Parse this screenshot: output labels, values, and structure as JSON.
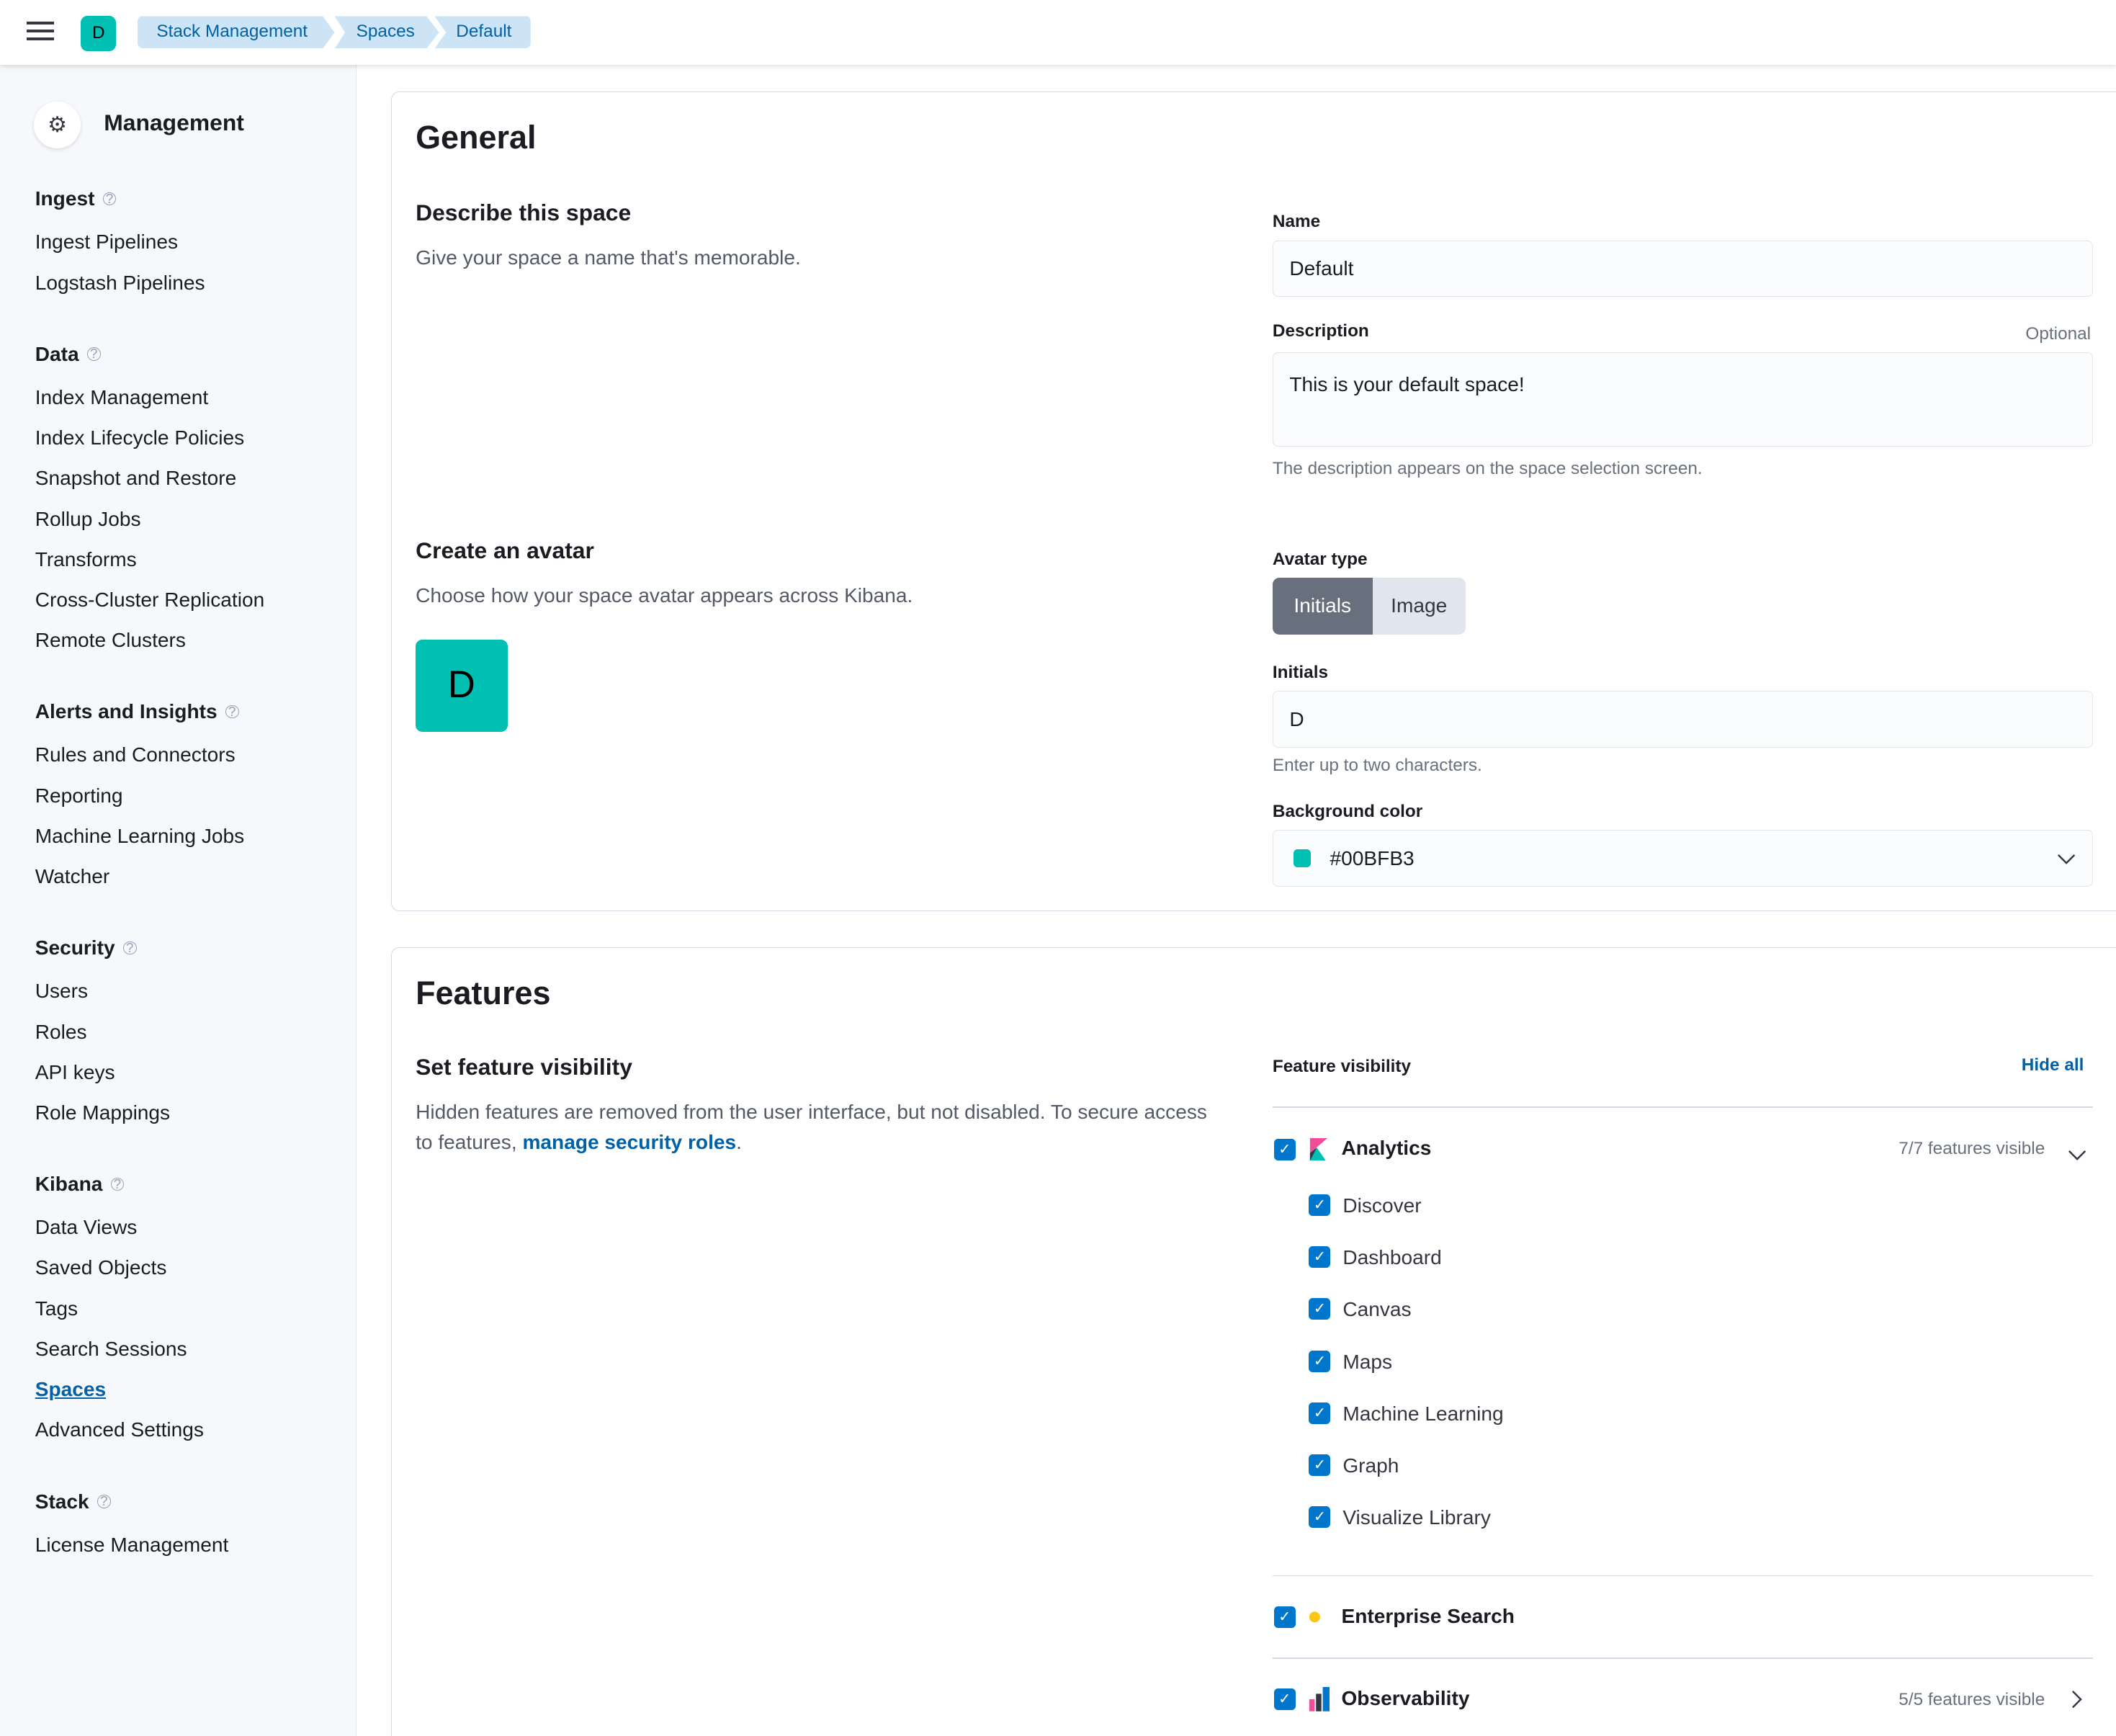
{
  "header": {
    "avatar_initial": "D",
    "breadcrumbs": [
      "Stack Management",
      "Spaces",
      "Default"
    ]
  },
  "sidebar": {
    "title": "Management",
    "sections": [
      {
        "title": "Ingest",
        "items": [
          "Ingest Pipelines",
          "Logstash Pipelines"
        ]
      },
      {
        "title": "Data",
        "items": [
          "Index Management",
          "Index Lifecycle Policies",
          "Snapshot and Restore",
          "Rollup Jobs",
          "Transforms",
          "Cross-Cluster Replication",
          "Remote Clusters"
        ]
      },
      {
        "title": "Alerts and Insights",
        "items": [
          "Rules and Connectors",
          "Reporting",
          "Machine Learning Jobs",
          "Watcher"
        ]
      },
      {
        "title": "Security",
        "items": [
          "Users",
          "Roles",
          "API keys",
          "Role Mappings"
        ]
      },
      {
        "title": "Kibana",
        "items": [
          "Data Views",
          "Saved Objects",
          "Tags",
          "Search Sessions",
          "Spaces",
          "Advanced Settings"
        ]
      },
      {
        "title": "Stack",
        "items": [
          "License Management"
        ]
      }
    ],
    "active": "Spaces",
    "help_icon": "question-circle-icon"
  },
  "general": {
    "title": "General",
    "describe_title": "Describe this space",
    "describe_text": "Give your space a name that's memorable.",
    "name_label": "Name",
    "name_value": "Default",
    "description_label": "Description",
    "description_optional": "Optional",
    "description_value": "This is your default space!",
    "description_help": "The description appears on the space selection screen.",
    "avatar_title": "Create an avatar",
    "avatar_text": "Choose how your space avatar appears across Kibana.",
    "avatar_initial": "D",
    "avatar_type_label": "Avatar type",
    "avatar_type_options": [
      "Initials",
      "Image"
    ],
    "avatar_type_selected": "Initials",
    "initials_label": "Initials",
    "initials_value": "D",
    "initials_help": "Enter up to two characters.",
    "bg_color_label": "Background color",
    "bg_color_value": "#00BFB3",
    "accent": "#00BFB3"
  },
  "features": {
    "title": "Features",
    "visibility_title": "Set feature visibility",
    "visibility_text": "Hidden features are removed from the user interface, but not disabled. To secure access to features, ",
    "link": "manage security roles",
    "period": ".",
    "column_label": "Feature visibility",
    "hide_all": "Hide all",
    "categories": [
      {
        "name": "Analytics",
        "count": "7/7 features visible",
        "expanded": true,
        "checked": true,
        "items": [
          "Discover",
          "Dashboard",
          "Canvas",
          "Maps",
          "Machine Learning",
          "Graph",
          "Visualize Library"
        ]
      },
      {
        "name": "Enterprise Search",
        "checked": true
      },
      {
        "name": "Observability",
        "count": "5/5 features visible",
        "expanded": false,
        "checked": true
      }
    ]
  }
}
